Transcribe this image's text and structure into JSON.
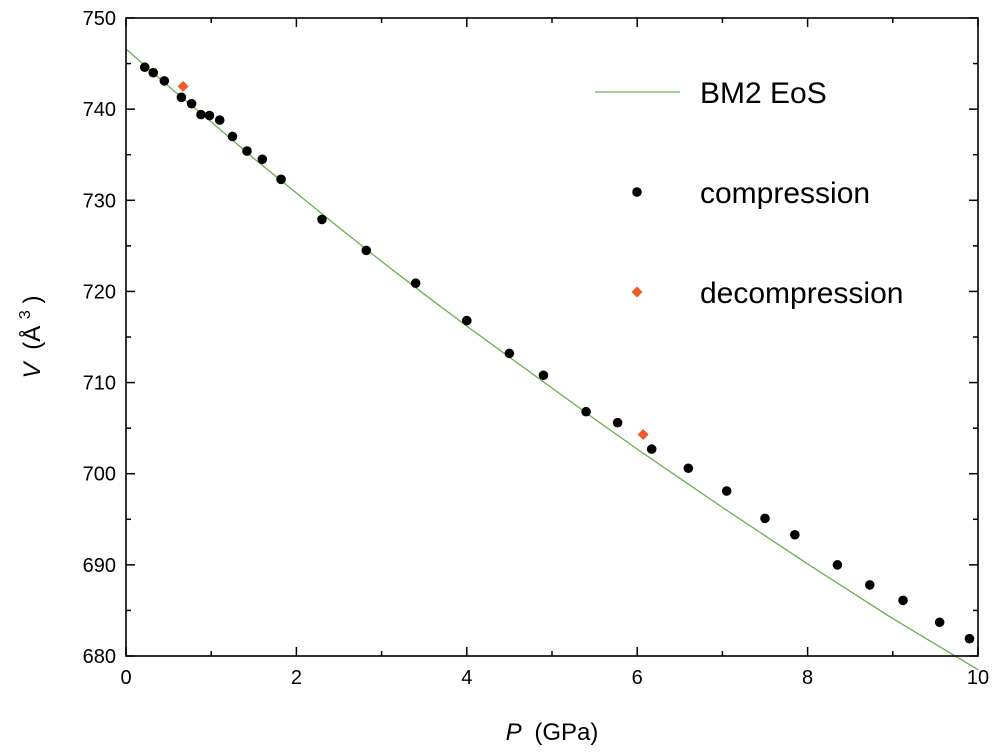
{
  "chart_data": {
    "type": "scatter",
    "xlabel": {
      "symbol": "P",
      "unit": "(GPa)"
    },
    "ylabel": {
      "symbol": "V",
      "unit_prefix": "(Å",
      "unit_exp": "3",
      "unit_suffix": ")"
    },
    "xlim": [
      0,
      10
    ],
    "ylim": [
      680,
      750
    ],
    "xticks": [
      0,
      2,
      4,
      6,
      8,
      10
    ],
    "yticks": [
      680,
      690,
      700,
      710,
      720,
      730,
      740,
      750
    ],
    "grid": false,
    "legend_position": "top-right",
    "colors": {
      "fit": "#6ab04c",
      "compression": "#000000",
      "decompression": "#f05a28"
    },
    "series": [
      {
        "name": "BM2 EoS",
        "kind": "line",
        "x": [
          0,
          0.5,
          1,
          1.5,
          2,
          2.5,
          3,
          3.5,
          4,
          4.5,
          5,
          5.5,
          6,
          6.5,
          7,
          7.5,
          8,
          8.5,
          9,
          9.5,
          10
        ],
        "y": [
          746.6,
          742.5,
          738.6,
          734.6,
          730.8,
          727.0,
          723.3,
          719.7,
          716.2,
          712.8,
          709.4,
          706.0,
          702.7,
          699.5,
          696.3,
          693.2,
          690.1,
          687.1,
          684.1,
          681.3,
          678.5
        ]
      },
      {
        "name": "compression",
        "kind": "points",
        "x": [
          0.22,
          0.32,
          0.45,
          0.65,
          0.77,
          0.88,
          0.98,
          1.1,
          1.25,
          1.42,
          1.6,
          1.82,
          2.3,
          2.82,
          3.4,
          4.0,
          4.5,
          4.9,
          5.4,
          5.77,
          6.17,
          6.6,
          7.05,
          7.5,
          7.85,
          8.35,
          8.73,
          9.12,
          9.55,
          9.9
        ],
        "y": [
          744.6,
          744.0,
          743.1,
          741.3,
          740.6,
          739.4,
          739.3,
          738.8,
          737.0,
          735.4,
          734.5,
          732.3,
          727.9,
          724.5,
          720.9,
          716.8,
          713.2,
          710.8,
          706.8,
          705.6,
          702.7,
          700.6,
          698.1,
          695.1,
          693.3,
          690.0,
          687.8,
          686.1,
          683.7,
          681.9
        ]
      },
      {
        "name": "decompression",
        "kind": "points",
        "x": [
          0.67,
          6.07
        ],
        "y": [
          742.5,
          704.3
        ]
      }
    ]
  }
}
